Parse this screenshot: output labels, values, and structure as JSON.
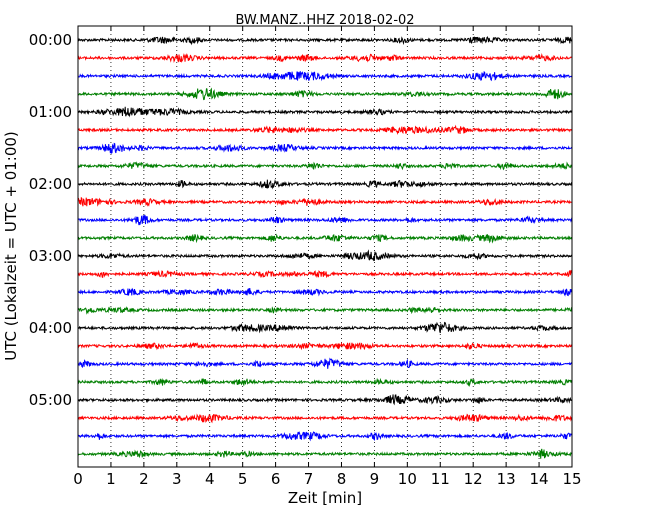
{
  "chart_data": {
    "type": "line",
    "title": "BW.MANZ..HHZ 2018-02-02",
    "xlabel": "Zeit  [min]",
    "ylabel": "UTC (Lokalzeit = UTC + 01:00)",
    "xlim": [
      0,
      15
    ],
    "x_ticks": [
      "0",
      "1",
      "2",
      "3",
      "4",
      "5",
      "6",
      "7",
      "8",
      "9",
      "10",
      "11",
      "12",
      "13",
      "14",
      "15"
    ],
    "y_ticks": [
      "00:00",
      "01:00",
      "02:00",
      "03:00",
      "04:00",
      "05:00"
    ],
    "grid": "vertical-dotted",
    "trace_colors": [
      "#000000",
      "#ff0000",
      "#0000ff",
      "#007f00"
    ],
    "traces": [
      {
        "start": "00:00",
        "color": "#000000"
      },
      {
        "start": "00:15",
        "color": "#ff0000"
      },
      {
        "start": "00:30",
        "color": "#0000ff"
      },
      {
        "start": "00:45",
        "color": "#007f00"
      },
      {
        "start": "01:00",
        "color": "#000000"
      },
      {
        "start": "01:15",
        "color": "#ff0000"
      },
      {
        "start": "01:30",
        "color": "#0000ff"
      },
      {
        "start": "01:45",
        "color": "#007f00"
      },
      {
        "start": "02:00",
        "color": "#000000"
      },
      {
        "start": "02:15",
        "color": "#ff0000"
      },
      {
        "start": "02:30",
        "color": "#0000ff"
      },
      {
        "start": "02:45",
        "color": "#007f00"
      },
      {
        "start": "03:00",
        "color": "#000000"
      },
      {
        "start": "03:15",
        "color": "#ff0000"
      },
      {
        "start": "03:30",
        "color": "#0000ff"
      },
      {
        "start": "03:45",
        "color": "#007f00"
      },
      {
        "start": "04:00",
        "color": "#000000"
      },
      {
        "start": "04:15",
        "color": "#ff0000"
      },
      {
        "start": "04:30",
        "color": "#0000ff"
      },
      {
        "start": "04:45",
        "color": "#007f00"
      },
      {
        "start": "05:00",
        "color": "#000000"
      },
      {
        "start": "05:15",
        "color": "#ff0000"
      },
      {
        "start": "05:30",
        "color": "#0000ff"
      },
      {
        "start": "05:45",
        "color": "#007f00"
      }
    ]
  }
}
